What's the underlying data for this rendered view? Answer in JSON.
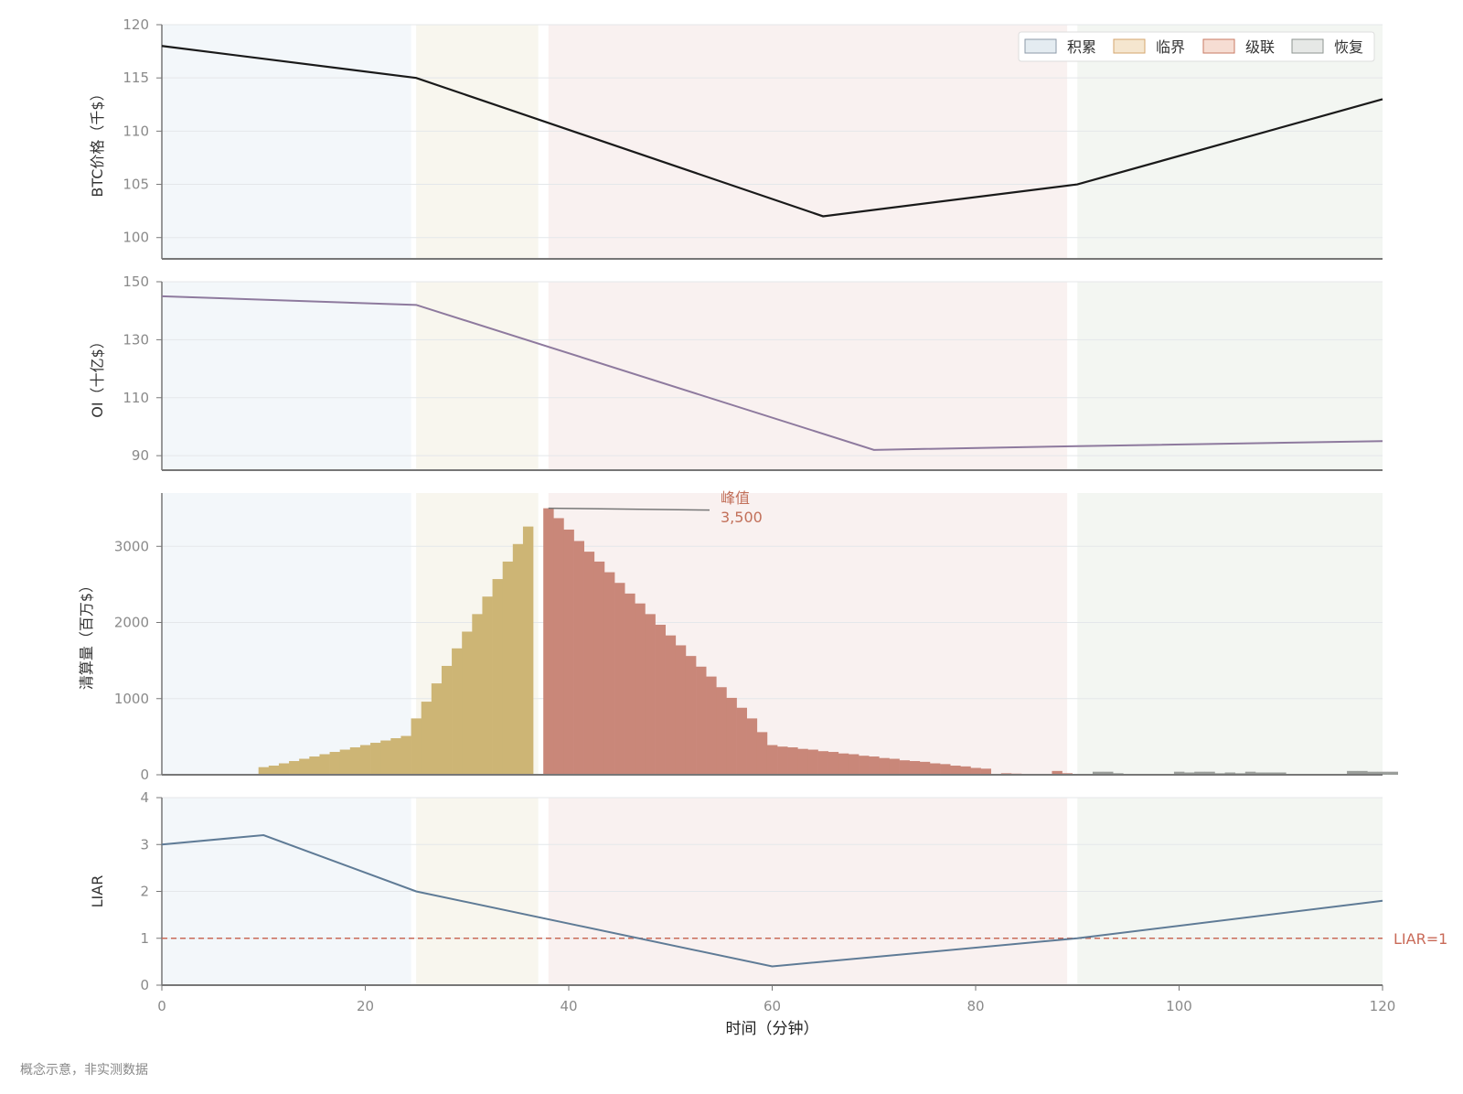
{
  "note": "概念示意，非实测数据",
  "xlabel": "时间（分钟）",
  "x_ticks": [
    "0",
    "20",
    "40",
    "60",
    "80",
    "100",
    "120"
  ],
  "phases": [
    {
      "name": "积累",
      "start": 0,
      "end": 24.5,
      "bg": "#f3f7fa",
      "swatch": "#e4ecf1",
      "edge": "#8c9aa8"
    },
    {
      "name": "临界",
      "start": 25,
      "end": 37,
      "bg": "#f8f6ee",
      "swatch": "#f5e6cf",
      "edge": "#d4a56e"
    },
    {
      "name": "级联",
      "start": 38,
      "end": 89,
      "bg": "#f9f1f0",
      "swatch": "#f6ddd3",
      "edge": "#c87a63"
    },
    {
      "name": "恢复",
      "start": 90,
      "end": 120,
      "bg": "#f3f6f2",
      "swatch": "#e6e8e6",
      "edge": "#8e9590"
    }
  ],
  "chart_data": [
    {
      "type": "line",
      "ylabel": "BTC价格（千$）",
      "ylim": [
        98,
        120
      ],
      "y_ticks": [
        100,
        105,
        110,
        115,
        120
      ],
      "color": "#1a1a1a",
      "x": [
        0,
        25,
        65,
        90,
        120
      ],
      "y": [
        118,
        115,
        102,
        105,
        113
      ],
      "legend": "top-right"
    },
    {
      "type": "line",
      "ylabel": "OI（十亿$）",
      "ylim": [
        85,
        150
      ],
      "y_ticks": [
        90,
        110,
        130,
        150
      ],
      "color": "#8e7a9e",
      "x": [
        0,
        25,
        70,
        90,
        120
      ],
      "y": [
        145,
        142,
        92,
        93.3,
        95
      ]
    },
    {
      "type": "bar",
      "ylabel": "清算量（百万$）",
      "ylim": [
        0,
        3700
      ],
      "y_ticks": [
        0,
        1000,
        2000,
        3000
      ],
      "bin_width": 1,
      "bars": [
        {
          "start": 9.5,
          "values": [
            100,
            120,
            150,
            180,
            210,
            240,
            270,
            300,
            330,
            360,
            390,
            420,
            450,
            480,
            510
          ],
          "color": "#cdb575"
        },
        {
          "start": 24.5,
          "values": [
            740,
            960,
            1200,
            1430,
            1660,
            1880,
            2110,
            2340,
            2570,
            2800,
            3030,
            3260
          ],
          "color": "#cdb575"
        },
        {
          "start": 37.5,
          "values": [
            3500,
            3370,
            3220,
            3070,
            2930,
            2800,
            2660,
            2520,
            2380,
            2250,
            2110,
            1970,
            1830,
            1700,
            1560,
            1420,
            1290,
            1150,
            1010,
            880,
            740,
            560,
            390,
            370,
            360,
            340,
            330,
            310,
            300,
            280,
            270,
            250,
            240,
            220,
            210,
            190,
            180,
            170,
            150,
            140,
            120,
            110,
            90,
            80
          ],
          "color": "#c98779"
        },
        {
          "start": 81.5,
          "values": [
            10,
            20,
            15,
            10,
            5,
            0,
            50,
            20,
            10,
            5
          ],
          "color": "#c98779"
        },
        {
          "start": 91.5,
          "values": [
            40,
            40,
            20,
            0,
            0,
            0,
            10,
            10,
            40,
            30,
            40,
            40,
            20,
            30,
            20,
            40,
            30,
            30,
            30,
            0,
            0,
            0,
            0,
            0,
            0,
            50,
            50,
            40,
            40,
            40
          ],
          "color": "#9a9e9a"
        }
      ],
      "annotation": {
        "label": "峰值",
        "value": "3,500",
        "x": 38,
        "y": 3500
      }
    },
    {
      "type": "line",
      "ylabel": "LIAR",
      "ylim": [
        0,
        4
      ],
      "y_ticks": [
        0,
        1,
        2,
        3,
        4
      ],
      "color": "#5f7b96",
      "x": [
        0,
        10,
        25,
        60,
        90,
        120
      ],
      "y": [
        3,
        3.2,
        2,
        0.4,
        1,
        1.8
      ],
      "reference": {
        "y": 1,
        "label": "LIAR=1",
        "color": "#c96a58"
      }
    }
  ]
}
